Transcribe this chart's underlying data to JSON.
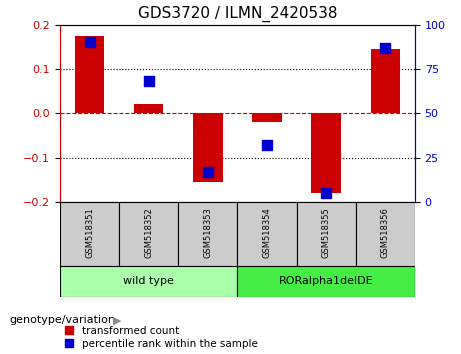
{
  "title": "GDS3720 / ILMN_2420538",
  "samples": [
    "GSM518351",
    "GSM518352",
    "GSM518353",
    "GSM518354",
    "GSM518355",
    "GSM518356"
  ],
  "transformed_count": [
    0.175,
    0.02,
    -0.155,
    -0.02,
    -0.18,
    0.145
  ],
  "percentile_rank": [
    90,
    68,
    17,
    32,
    5,
    87
  ],
  "ylim": [
    -0.2,
    0.2
  ],
  "yticks_left": [
    -0.2,
    -0.1,
    0,
    0.1,
    0.2
  ],
  "yticks_right": [
    0,
    25,
    50,
    75,
    100
  ],
  "bar_color": "#cc0000",
  "dot_color": "#0000cc",
  "legend_red_label": "transformed count",
  "legend_blue_label": "percentile rank within the sample",
  "genotype_label": "genotype/variation",
  "group_bg_color_wild": "#aaffaa",
  "group_bg_color_ror": "#44ee44",
  "sample_box_color": "#cccccc",
  "wild_type_label": "wild type",
  "ror_label": "RORalpha1delDE",
  "figwidth": 4.61,
  "figheight": 3.54,
  "dpi": 100
}
